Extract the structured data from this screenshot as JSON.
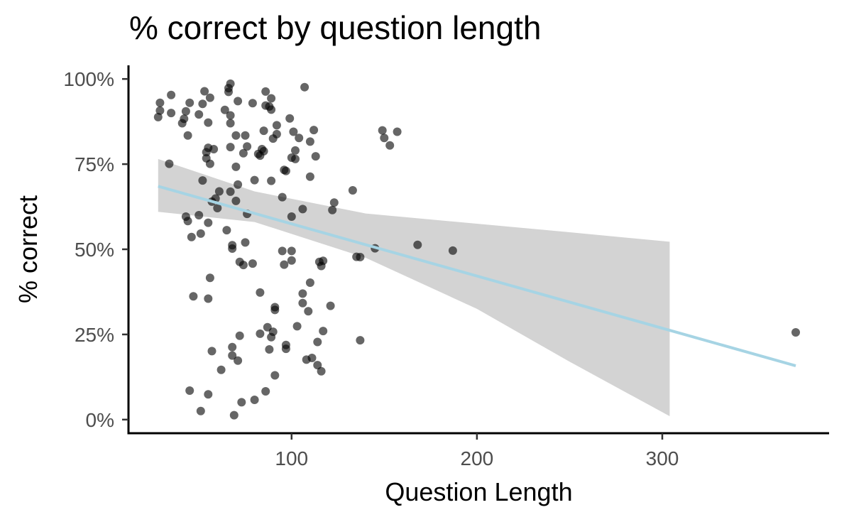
{
  "chart_data": {
    "type": "scatter",
    "title": "% correct by question length",
    "xlabel": "Question Length",
    "ylabel": "% correct",
    "x_ticks": [
      100,
      200,
      300
    ],
    "x_tick_labels": [
      "100",
      "200",
      "300"
    ],
    "y_ticks": [
      0,
      25,
      50,
      75,
      100
    ],
    "y_tick_labels": [
      "0%",
      "25%",
      "50%",
      "75%",
      "100%"
    ],
    "xlim": [
      12,
      390
    ],
    "ylim": [
      -4,
      104
    ],
    "grid": false,
    "legend": "none",
    "point_color": "#000000",
    "point_opacity": 0.6,
    "fit_line_color": "#a6d4e4",
    "ribbon_color": "#d3d3d3",
    "points": [
      [
        28,
        88.8
      ],
      [
        29,
        90.7
      ],
      [
        29,
        93.0
      ],
      [
        34,
        75.1
      ],
      [
        35,
        90.0
      ],
      [
        35,
        95.3
      ],
      [
        41,
        87.0
      ],
      [
        42,
        88.3
      ],
      [
        43,
        59.6
      ],
      [
        43,
        90.5
      ],
      [
        44,
        83.4
      ],
      [
        44,
        58.3
      ],
      [
        45,
        93.0
      ],
      [
        45,
        8.5
      ],
      [
        46,
        53.6
      ],
      [
        47,
        36.2
      ],
      [
        50,
        60.0
      ],
      [
        50,
        89.6
      ],
      [
        51,
        54.6
      ],
      [
        51,
        2.5
      ],
      [
        52,
        92.7
      ],
      [
        52,
        70.2
      ],
      [
        53,
        96.4
      ],
      [
        54,
        76.7
      ],
      [
        54,
        78.5
      ],
      [
        55,
        87.2
      ],
      [
        55,
        79.8
      ],
      [
        55,
        35.5
      ],
      [
        55,
        57.8
      ],
      [
        55,
        7.4
      ],
      [
        56,
        75.1
      ],
      [
        56,
        94.5
      ],
      [
        56,
        41.6
      ],
      [
        57,
        64.0
      ],
      [
        57,
        20.1
      ],
      [
        58,
        79.4
      ],
      [
        59,
        64.9
      ],
      [
        60,
        62.1
      ],
      [
        61,
        67.0
      ],
      [
        62,
        14.6
      ],
      [
        64,
        90.9
      ],
      [
        65,
        55.6
      ],
      [
        66,
        96.2
      ],
      [
        66,
        97.3
      ],
      [
        67,
        98.6
      ],
      [
        67,
        89.3
      ],
      [
        67,
        87.0
      ],
      [
        67,
        80.0
      ],
      [
        67,
        66.9
      ],
      [
        68,
        51.2
      ],
      [
        68,
        50.2
      ],
      [
        68,
        21.3
      ],
      [
        68,
        18.8
      ],
      [
        69,
        1.3
      ],
      [
        70,
        64.2
      ],
      [
        70,
        74.2
      ],
      [
        70,
        83.4
      ],
      [
        71,
        93.5
      ],
      [
        71,
        69.0
      ],
      [
        71,
        17.3
      ],
      [
        72,
        46.3
      ],
      [
        72,
        24.6
      ],
      [
        73,
        5.1
      ],
      [
        74,
        78.2
      ],
      [
        74,
        45.4
      ],
      [
        75,
        83.4
      ],
      [
        75,
        52.0
      ],
      [
        76,
        80.2
      ],
      [
        76,
        60.4
      ],
      [
        79,
        45.8
      ],
      [
        79,
        92.9
      ],
      [
        80,
        70.3
      ],
      [
        80,
        5.8
      ],
      [
        82,
        78.0
      ],
      [
        83,
        77.5
      ],
      [
        83,
        25.2
      ],
      [
        83,
        37.3
      ],
      [
        84,
        79.4
      ],
      [
        85,
        78.8
      ],
      [
        85,
        84.8
      ],
      [
        86,
        96.3
      ],
      [
        86,
        92.2
      ],
      [
        86,
        8.3
      ],
      [
        87,
        27.1
      ],
      [
        88,
        91.9
      ],
      [
        88,
        20.6
      ],
      [
        89,
        94.3
      ],
      [
        89,
        91.0
      ],
      [
        89,
        70.1
      ],
      [
        89,
        24.2
      ],
      [
        90,
        82.5
      ],
      [
        90,
        25.8
      ],
      [
        91,
        33.0
      ],
      [
        91,
        32.2
      ],
      [
        91,
        13.0
      ],
      [
        92,
        86.4
      ],
      [
        92,
        83.8
      ],
      [
        95,
        49.5
      ],
      [
        95,
        65.3
      ],
      [
        96,
        45.5
      ],
      [
        96,
        73.3
      ],
      [
        97,
        21.9
      ],
      [
        97,
        73.0
      ],
      [
        97,
        20.8
      ],
      [
        99,
        88.4
      ],
      [
        100,
        59.6
      ],
      [
        100,
        49.5
      ],
      [
        100,
        46.7
      ],
      [
        100,
        76.9
      ],
      [
        101,
        84.5
      ],
      [
        102,
        79.0
      ],
      [
        102,
        76.5
      ],
      [
        103,
        27.4
      ],
      [
        104,
        82.7
      ],
      [
        106,
        61.8
      ],
      [
        106,
        37.0
      ],
      [
        106,
        34.2
      ],
      [
        107,
        97.6
      ],
      [
        108,
        17.6
      ],
      [
        109,
        31.8
      ],
      [
        110,
        81.6
      ],
      [
        110,
        71.3
      ],
      [
        110,
        40.2
      ],
      [
        111,
        18.1
      ],
      [
        112,
        85.0
      ],
      [
        113,
        77.3
      ],
      [
        114,
        22.8
      ],
      [
        114,
        16.0
      ],
      [
        115,
        46.3
      ],
      [
        116,
        45.1
      ],
      [
        116,
        14.2
      ],
      [
        117,
        26.0
      ],
      [
        117,
        46.6
      ],
      [
        121,
        33.4
      ],
      [
        122,
        61.5
      ],
      [
        123,
        63.7
      ],
      [
        133,
        67.3
      ],
      [
        135,
        47.8
      ],
      [
        137,
        23.3
      ],
      [
        137,
        47.7
      ],
      [
        145,
        50.3
      ],
      [
        149,
        84.9
      ],
      [
        150,
        82.7
      ],
      [
        153,
        80.5
      ],
      [
        157,
        84.5
      ],
      [
        168,
        51.3
      ],
      [
        187,
        49.6
      ],
      [
        372,
        25.6
      ]
    ],
    "fit_line": {
      "x": [
        28,
        372
      ],
      "y": [
        68.5,
        15.8
      ]
    },
    "confidence_band": {
      "x": [
        28,
        80,
        140,
        200,
        250,
        304
      ],
      "upper": [
        76.5,
        67.0,
        60.5,
        57.5,
        55.0,
        52.2
      ],
      "lower": [
        61.0,
        58.0,
        47.5,
        32.5,
        17.0,
        1.0
      ]
    }
  }
}
